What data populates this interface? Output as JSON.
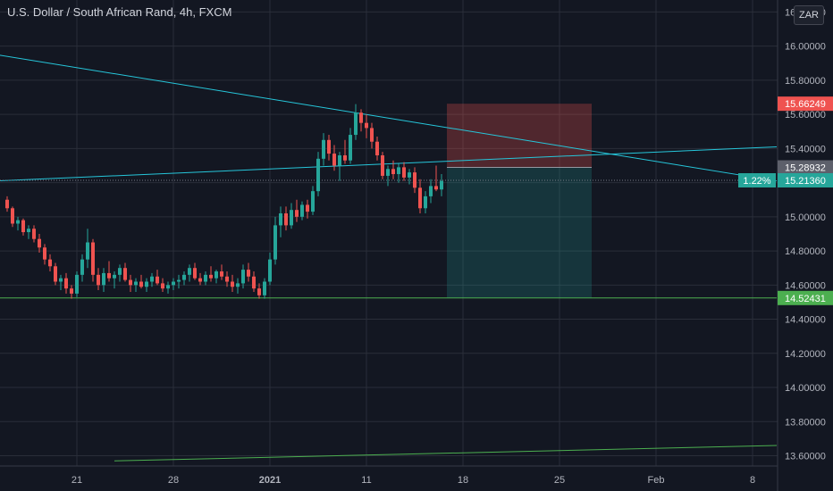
{
  "header": {
    "title": "U.S. Dollar / South African Rand, 4h, FXCM",
    "currency_button": "ZAR"
  },
  "colors": {
    "background": "#131722",
    "grid": "#2a2e39",
    "up": "#26a69a",
    "down": "#ef5350",
    "trendline": "#26c6da",
    "support": "#4caf50",
    "stop_zone": "#ef5350",
    "target_zone": "#26a69a"
  },
  "chart_data": {
    "type": "candlestick",
    "symbol": "U.S. Dollar / South African Rand",
    "timeframe": "4h",
    "source": "FXCM",
    "y_axis": {
      "range": [
        13.54,
        16.27
      ],
      "ticks": [
        "13.60000",
        "13.80000",
        "14.00000",
        "14.20000",
        "14.40000",
        "14.60000",
        "14.80000",
        "15.00000",
        "15.20000",
        "15.40000",
        "15.60000",
        "15.80000",
        "16.00000",
        "16.20000"
      ]
    },
    "x_axis": {
      "ticks": [
        {
          "label": "21",
          "bar": 13
        },
        {
          "label": "28",
          "bar": 31
        },
        {
          "label": "2021",
          "bar": 49
        },
        {
          "label": "11",
          "bar": 67
        },
        {
          "label": "18",
          "bar": 85
        },
        {
          "label": "25",
          "bar": 103
        },
        {
          "label": "Feb",
          "bar": 121
        },
        {
          "label": "8",
          "bar": 139
        }
      ]
    },
    "price_labels": [
      {
        "text": "15.66249",
        "value": 15.66249,
        "kind": "stop"
      },
      {
        "text": "15.28932",
        "value": 15.28932,
        "kind": "entry"
      },
      {
        "text": "15.21360",
        "value": 15.2136,
        "kind": "last",
        "badge": "1.22%"
      },
      {
        "text": "14.52431",
        "value": 14.52431,
        "kind": "support"
      }
    ],
    "trendlines": [
      {
        "name": "descending",
        "from": {
          "bar": -2,
          "price": 15.95
        },
        "to": {
          "bar": 143.5,
          "price": 15.21
        }
      },
      {
        "name": "ascending",
        "from": {
          "bar": -2,
          "price": 15.21
        },
        "to": {
          "bar": 143.5,
          "price": 15.41
        }
      },
      {
        "name": "support",
        "from": {
          "bar": -2,
          "price": 14.52431
        },
        "to": {
          "bar": 143.5,
          "price": 14.52431
        }
      },
      {
        "name": "lower-trend",
        "from": {
          "bar": 20,
          "price": 13.57
        },
        "to": {
          "bar": 143.5,
          "price": 13.66
        }
      }
    ],
    "position": {
      "start_bar": 82,
      "end_bar": 109,
      "entry": 15.28932,
      "stop": 15.66249,
      "target": 14.52431
    },
    "candles": [
      [
        15.1,
        15.12,
        15.03,
        15.05
      ],
      [
        15.05,
        15.06,
        14.94,
        14.96
      ],
      [
        14.96,
        15.0,
        14.92,
        14.98
      ],
      [
        14.98,
        14.99,
        14.89,
        14.91
      ],
      [
        14.91,
        14.95,
        14.87,
        14.93
      ],
      [
        14.93,
        14.95,
        14.85,
        14.87
      ],
      [
        14.87,
        14.9,
        14.79,
        14.82
      ],
      [
        14.82,
        14.84,
        14.72,
        14.75
      ],
      [
        14.75,
        14.78,
        14.68,
        14.71
      ],
      [
        14.71,
        14.73,
        14.6,
        14.62
      ],
      [
        14.62,
        14.66,
        14.57,
        14.64
      ],
      [
        14.64,
        14.67,
        14.55,
        14.58
      ],
      [
        14.58,
        14.6,
        14.52,
        14.55
      ],
      [
        14.55,
        14.68,
        14.53,
        14.66
      ],
      [
        14.66,
        14.78,
        14.62,
        14.75
      ],
      [
        14.75,
        14.93,
        14.7,
        14.85
      ],
      [
        14.85,
        14.87,
        14.62,
        14.66
      ],
      [
        14.66,
        14.7,
        14.57,
        14.6
      ],
      [
        14.6,
        14.7,
        14.56,
        14.67
      ],
      [
        14.67,
        14.74,
        14.62,
        14.64
      ],
      [
        14.64,
        14.68,
        14.58,
        14.66
      ],
      [
        14.66,
        14.72,
        14.62,
        14.7
      ],
      [
        14.7,
        14.73,
        14.62,
        14.63
      ],
      [
        14.63,
        14.66,
        14.56,
        14.6
      ],
      [
        14.6,
        14.64,
        14.56,
        14.62
      ],
      [
        14.62,
        14.66,
        14.58,
        14.59
      ],
      [
        14.59,
        14.64,
        14.56,
        14.62
      ],
      [
        14.62,
        14.67,
        14.59,
        14.65
      ],
      [
        14.65,
        14.69,
        14.6,
        14.61
      ],
      [
        14.61,
        14.64,
        14.56,
        14.58
      ],
      [
        14.58,
        14.62,
        14.55,
        14.6
      ],
      [
        14.6,
        14.64,
        14.57,
        14.62
      ],
      [
        14.62,
        14.66,
        14.58,
        14.63
      ],
      [
        14.63,
        14.68,
        14.6,
        14.66
      ],
      [
        14.66,
        14.72,
        14.62,
        14.7
      ],
      [
        14.7,
        14.73,
        14.63,
        14.64
      ],
      [
        14.64,
        14.67,
        14.6,
        14.62
      ],
      [
        14.62,
        14.68,
        14.6,
        14.66
      ],
      [
        14.66,
        14.71,
        14.62,
        14.64
      ],
      [
        14.64,
        14.69,
        14.61,
        14.68
      ],
      [
        14.68,
        14.72,
        14.63,
        14.65
      ],
      [
        14.65,
        14.68,
        14.59,
        14.62
      ],
      [
        14.62,
        14.66,
        14.56,
        14.59
      ],
      [
        14.59,
        14.64,
        14.55,
        14.61
      ],
      [
        14.61,
        14.72,
        14.58,
        14.69
      ],
      [
        14.69,
        14.73,
        14.62,
        14.65
      ],
      [
        14.65,
        14.68,
        14.56,
        14.58
      ],
      [
        14.58,
        14.61,
        14.52,
        14.54
      ],
      [
        14.54,
        14.64,
        14.52,
        14.62
      ],
      [
        14.62,
        14.79,
        14.6,
        14.75
      ],
      [
        14.75,
        15.0,
        14.72,
        14.95
      ],
      [
        14.95,
        15.06,
        14.88,
        15.02
      ],
      [
        15.02,
        15.06,
        14.92,
        14.95
      ],
      [
        14.95,
        15.08,
        14.93,
        15.04
      ],
      [
        15.04,
        15.1,
        14.97,
        15.0
      ],
      [
        15.0,
        15.09,
        14.98,
        15.07
      ],
      [
        15.07,
        15.1,
        14.99,
        15.03
      ],
      [
        15.03,
        15.18,
        15.01,
        15.15
      ],
      [
        15.15,
        15.38,
        15.12,
        15.34
      ],
      [
        15.34,
        15.49,
        15.3,
        15.45
      ],
      [
        15.45,
        15.48,
        15.33,
        15.37
      ],
      [
        15.37,
        15.42,
        15.27,
        15.3
      ],
      [
        15.3,
        15.38,
        15.21,
        15.36
      ],
      [
        15.36,
        15.45,
        15.31,
        15.33
      ],
      [
        15.33,
        15.52,
        15.31,
        15.48
      ],
      [
        15.48,
        15.66,
        15.45,
        15.61
      ],
      [
        15.61,
        15.63,
        15.5,
        15.55
      ],
      [
        15.55,
        15.6,
        15.46,
        15.52
      ],
      [
        15.52,
        15.55,
        15.4,
        15.44
      ],
      [
        15.44,
        15.47,
        15.33,
        15.36
      ],
      [
        15.36,
        15.38,
        15.22,
        15.24
      ],
      [
        15.24,
        15.3,
        15.18,
        15.28
      ],
      [
        15.28,
        15.33,
        15.22,
        15.25
      ],
      [
        15.25,
        15.31,
        15.2,
        15.29
      ],
      [
        15.29,
        15.32,
        15.21,
        15.23
      ],
      [
        15.23,
        15.28,
        15.19,
        15.26
      ],
      [
        15.26,
        15.29,
        15.14,
        15.17
      ],
      [
        15.17,
        15.22,
        15.02,
        15.05
      ],
      [
        15.05,
        15.15,
        15.02,
        15.12
      ],
      [
        15.12,
        15.22,
        15.08,
        15.18
      ],
      [
        15.18,
        15.3,
        15.15,
        15.16
      ],
      [
        15.16,
        15.25,
        15.12,
        15.21
      ]
    ]
  }
}
